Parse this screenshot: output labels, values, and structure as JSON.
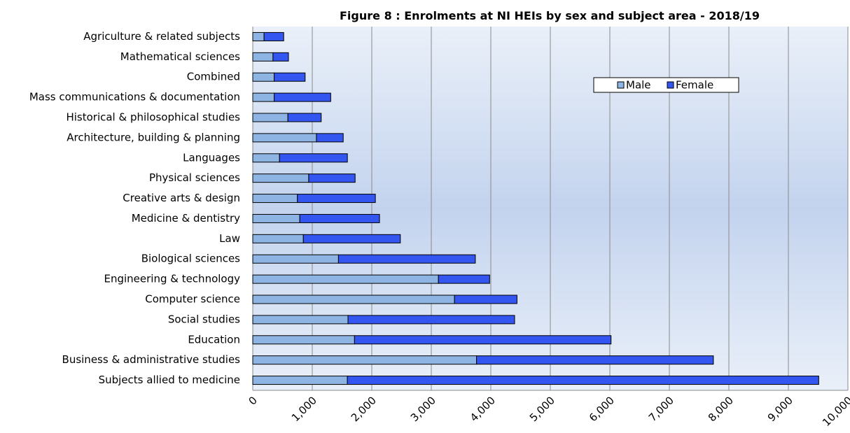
{
  "chart_data": {
    "type": "stacked_barh",
    "title": "Figure 8 : Enrolments at NI HEIs by sex and subject area - 2018/19",
    "categories": [
      "Agriculture & related subjects",
      "Mathematical sciences",
      "Combined",
      "Mass communications & documentation",
      "Historical & philosophical studies",
      "Architecture, building & planning",
      "Languages",
      "Physical sciences",
      "Creative arts & design",
      "Medicine & dentistry",
      "Law",
      "Biological sciences",
      "Engineering & technology",
      "Computer science",
      "Social studies",
      "Education",
      "Business & administrative studies",
      "Subjects allied to medicine"
    ],
    "series": [
      {
        "name": "Male",
        "color": "#8db4e2",
        "values": [
          190,
          340,
          360,
          360,
          590,
          1070,
          450,
          940,
          750,
          790,
          850,
          1440,
          3120,
          3390,
          1600,
          1710,
          3760,
          1590
        ]
      },
      {
        "name": "Female",
        "color": "#3355f0",
        "values": [
          330,
          260,
          520,
          950,
          560,
          450,
          1140,
          780,
          1310,
          1340,
          1630,
          2300,
          860,
          1050,
          2800,
          4310,
          3980,
          7920
        ]
      }
    ],
    "xlim": [
      0,
      10000
    ],
    "xticks": [
      0,
      {
        "value": 1000,
        "label": "1,000"
      },
      {
        "value": 2000,
        "label": "2,000"
      },
      {
        "value": 3000,
        "label": "3,000"
      },
      {
        "value": 4000,
        "label": "4,000"
      },
      {
        "value": 5000,
        "label": "5,000"
      },
      {
        "value": 6000,
        "label": "6,000"
      },
      {
        "value": 7000,
        "label": "7,000"
      },
      {
        "value": 8000,
        "label": "8,000"
      },
      {
        "value": 9000,
        "label": "9,000"
      },
      {
        "value": 10000,
        "label": "10,000"
      }
    ],
    "grid": true,
    "legend": "top-right"
  }
}
